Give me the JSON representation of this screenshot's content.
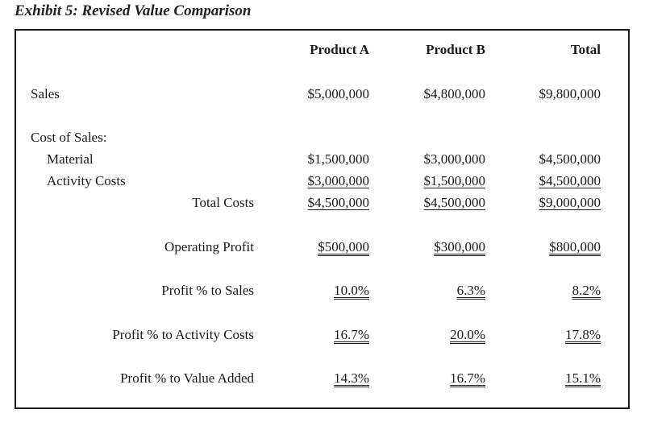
{
  "title": "Exhibit 5: Revised Value Comparison",
  "headers": {
    "col1": "Product A",
    "col2": "Product B",
    "col3": "Total"
  },
  "rows": {
    "sales": {
      "label": "Sales",
      "a": "$5,000,000",
      "b": "$4,800,000",
      "t": "$9,800,000"
    },
    "cost_of_sales": {
      "label": "Cost of Sales:"
    },
    "material": {
      "label": "Material",
      "a": "$1,500,000",
      "b": "$3,000,000",
      "t": "$4,500,000"
    },
    "activity_costs": {
      "label": "Activity Costs",
      "a": "$3,000,000",
      "b": "$1,500,000",
      "t": "$4,500,000"
    },
    "total_costs": {
      "label": "Total Costs",
      "a": "$4,500,000",
      "b": "$4,500,000",
      "t": "$9,000,000"
    },
    "operating_profit": {
      "label": "Operating Profit",
      "a": "$500,000",
      "b": "$300,000",
      "t": "$800,000"
    },
    "profit_pct_sales": {
      "label": "Profit % to Sales",
      "a": "10.0%",
      "b": "6.3%",
      "t": "8.2%"
    },
    "profit_pct_activity": {
      "label": "Profit % to Activity Costs",
      "a": "16.7%",
      "b": "20.0%",
      "t": "17.8%"
    },
    "profit_pct_value_added": {
      "label": "Profit % to Value Added",
      "a": "14.3%",
      "b": "16.7%",
      "t": "15.1%"
    }
  }
}
